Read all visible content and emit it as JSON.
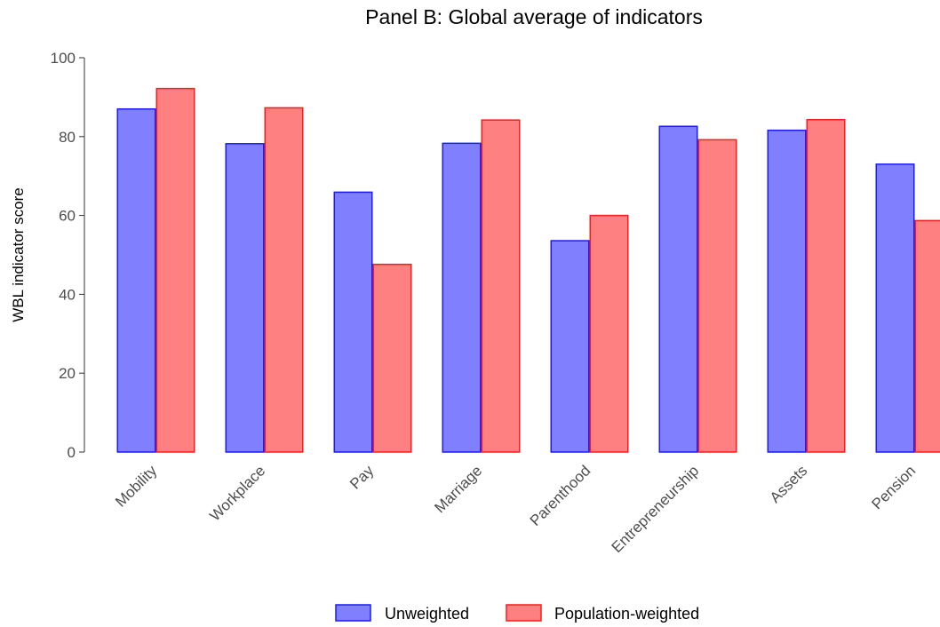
{
  "chart_data": {
    "type": "bar",
    "title": "Panel B: Global average of indicators",
    "xlabel": "",
    "ylabel": "WBL indicator score",
    "ylim": [
      0,
      100
    ],
    "yticks": [
      0,
      20,
      40,
      60,
      80,
      100
    ],
    "categories": [
      "Mobility",
      "Workplace",
      "Pay",
      "Marriage",
      "Parenthood",
      "Entrepreneurship",
      "Assets",
      "Pension"
    ],
    "series": [
      {
        "name": "Unweighted",
        "fill": "#8080ff",
        "stroke": "#1a1aff",
        "values": [
          87,
          78.2,
          65.9,
          78.3,
          53.6,
          82.6,
          81.6,
          73
        ]
      },
      {
        "name": "Population-weighted",
        "fill": "#ff8080",
        "stroke": "#ff1a1a",
        "values": [
          92.2,
          87.3,
          47.6,
          84.2,
          60,
          79.2,
          84.3,
          58.7
        ]
      }
    ],
    "grid": false,
    "legend_position": "bottom"
  }
}
